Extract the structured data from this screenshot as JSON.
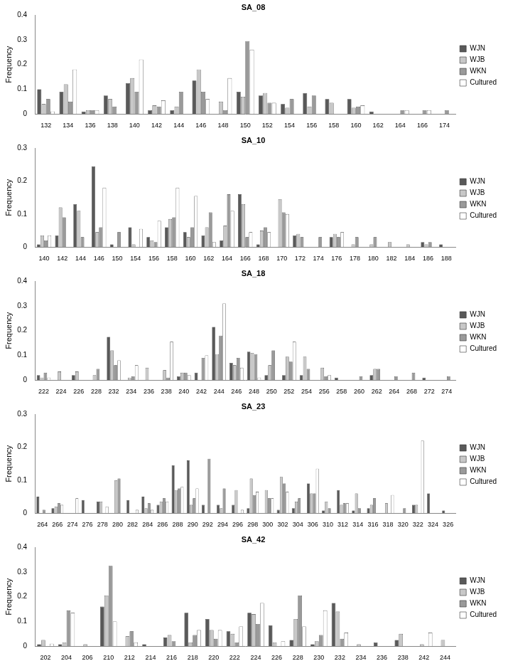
{
  "chart_data": [
    {
      "type": "bar",
      "title": "SA_08",
      "y_label": "Frequency",
      "grid": false,
      "legend": "right",
      "categories": [
        "132",
        "134",
        "136",
        "138",
        "140",
        "142",
        "144",
        "146",
        "148",
        "150",
        "152",
        "154",
        "156",
        "158",
        "160",
        "162",
        "164",
        "166",
        "174"
      ],
      "ylim": [
        0,
        0.4
      ],
      "yticks": [
        0,
        0.1,
        0.2,
        0.3,
        0.4
      ],
      "series": [
        {
          "name": "WJN",
          "color": "#595959",
          "values": [
            0.1,
            0.09,
            0.01,
            0.075,
            0.125,
            0.015,
            0.015,
            0.135,
            0,
            0.09,
            0.075,
            0.04,
            0.085,
            0.06,
            0.06,
            0.01,
            0,
            0,
            0
          ]
        },
        {
          "name": "WJB",
          "color": "#c8c8c8",
          "values": [
            0.04,
            0.12,
            0.015,
            0.06,
            0.145,
            0.035,
            0.03,
            0.18,
            0.05,
            0.07,
            0.085,
            0.025,
            0.03,
            0.045,
            0.025,
            0,
            0,
            0,
            0
          ]
        },
        {
          "name": "WKN",
          "color": "#9a9a9a",
          "values": [
            0.06,
            0.05,
            0.015,
            0.03,
            0.09,
            0.03,
            0.09,
            0.09,
            0.015,
            0.295,
            0.045,
            0.06,
            0.075,
            0,
            0.03,
            0,
            0.015,
            0.015,
            0.015
          ]
        },
        {
          "name": "Cultured",
          "color": "#ffffff",
          "values": [
            0.01,
            0.18,
            0.015,
            0,
            0.22,
            0.055,
            0,
            0.06,
            0.145,
            0.26,
            0.045,
            0,
            0,
            0,
            0.035,
            0,
            0.015,
            0.015,
            0
          ]
        }
      ]
    },
    {
      "type": "bar",
      "title": "SA_10",
      "y_label": "Frequency",
      "grid": false,
      "legend": "right",
      "categories": [
        "140",
        "142",
        "144",
        "146",
        "150",
        "154",
        "156",
        "158",
        "160",
        "162",
        "164",
        "166",
        "168",
        "170",
        "172",
        "174",
        "176",
        "178",
        "180",
        "182",
        "184",
        "186",
        "188"
      ],
      "ylim": [
        0,
        0.3
      ],
      "yticks": [
        0,
        0.1,
        0.2,
        0.3
      ],
      "series": [
        {
          "name": "WJN",
          "color": "#595959",
          "values": [
            0.008,
            0.035,
            0.13,
            0.245,
            0.008,
            0.06,
            0.03,
            0.06,
            0.045,
            0.035,
            0.02,
            0.16,
            0.008,
            0,
            0.035,
            0,
            0.03,
            0,
            0,
            0,
            0,
            0.015,
            0.008
          ]
        },
        {
          "name": "WJB",
          "color": "#c8c8c8",
          "values": [
            0.035,
            0.12,
            0.11,
            0.045,
            0,
            0.008,
            0.02,
            0.085,
            0.03,
            0.06,
            0.065,
            0.13,
            0.05,
            0.145,
            0.04,
            0,
            0.04,
            0.008,
            0.008,
            0.015,
            0.008,
            0.008,
            0
          ]
        },
        {
          "name": "WKN",
          "color": "#9a9a9a",
          "values": [
            0.02,
            0.09,
            0.03,
            0.06,
            0.045,
            0,
            0.015,
            0.09,
            0.06,
            0.105,
            0.16,
            0.03,
            0.06,
            0.105,
            0.03,
            0.03,
            0.03,
            0.03,
            0.03,
            0,
            0,
            0.015,
            0
          ]
        },
        {
          "name": "Cultured",
          "color": "#ffffff",
          "values": [
            0.035,
            0,
            0,
            0.18,
            0,
            0.055,
            0.08,
            0.18,
            0.155,
            0.015,
            0.11,
            0.045,
            0.045,
            0.1,
            0,
            0,
            0.045,
            0,
            0,
            0,
            0,
            0,
            0
          ]
        }
      ]
    },
    {
      "type": "bar",
      "title": "SA_18",
      "y_label": "Frequency",
      "grid": false,
      "legend": "right",
      "categories": [
        "222",
        "224",
        "226",
        "228",
        "232",
        "234",
        "236",
        "238",
        "240",
        "242",
        "244",
        "246",
        "248",
        "250",
        "252",
        "254",
        "256",
        "258",
        "260",
        "262",
        "264",
        "268",
        "272",
        "274"
      ],
      "ylim": [
        0,
        0.4
      ],
      "yticks": [
        0,
        0.1,
        0.2,
        0.3,
        0.4
      ],
      "series": [
        {
          "name": "WJN",
          "color": "#595959",
          "values": [
            0.02,
            0,
            0.02,
            0,
            0.175,
            0,
            0,
            0,
            0.015,
            0.03,
            0.215,
            0.07,
            0.115,
            0.02,
            0.02,
            0.02,
            0,
            0.01,
            0,
            0.02,
            0,
            0,
            0.01,
            0
          ]
        },
        {
          "name": "WJB",
          "color": "#c8c8c8",
          "values": [
            0.01,
            0.035,
            0.035,
            0.02,
            0.12,
            0.01,
            0.05,
            0.04,
            0.03,
            0,
            0.105,
            0.06,
            0.11,
            0.06,
            0.095,
            0.095,
            0.05,
            0,
            0,
            0.045,
            0,
            0,
            0,
            0
          ]
        },
        {
          "name": "WKN",
          "color": "#9a9a9a",
          "values": [
            0.03,
            0,
            0,
            0.045,
            0.06,
            0.015,
            0,
            0.01,
            0.03,
            0.09,
            0.18,
            0.09,
            0.105,
            0.12,
            0.075,
            0.045,
            0.015,
            0,
            0.015,
            0.045,
            0.015,
            0.03,
            0,
            0.015
          ]
        },
        {
          "name": "Cultured",
          "color": "#ffffff",
          "values": [
            0.01,
            0,
            0,
            0,
            0.08,
            0.06,
            0,
            0.155,
            0.02,
            0.1,
            0.31,
            0.05,
            0.01,
            0,
            0.155,
            0,
            0.02,
            0,
            0,
            0,
            0,
            0,
            0,
            0
          ]
        }
      ]
    },
    {
      "type": "bar",
      "title": "SA_23",
      "y_label": "Frequency",
      "grid": false,
      "legend": "right",
      "categories": [
        "264",
        "266",
        "274",
        "276",
        "278",
        "280",
        "282",
        "284",
        "286",
        "288",
        "290",
        "292",
        "294",
        "296",
        "298",
        "300",
        "302",
        "304",
        "306",
        "310",
        "312",
        "314",
        "316",
        "318",
        "320",
        "322",
        "324",
        "326"
      ],
      "ylim": [
        0,
        0.3
      ],
      "yticks": [
        0,
        0.1,
        0.2,
        0.3
      ],
      "series": [
        {
          "name": "WJN",
          "color": "#595959",
          "values": [
            0.05,
            0.015,
            0,
            0.04,
            0.035,
            0,
            0.04,
            0.05,
            0.025,
            0.145,
            0.16,
            0.025,
            0.025,
            0.025,
            0.015,
            0,
            0.01,
            0.015,
            0.09,
            0.008,
            0.07,
            0.008,
            0.015,
            0,
            0,
            0.025,
            0.06,
            0.008
          ]
        },
        {
          "name": "WJB",
          "color": "#c8c8c8",
          "values": [
            0,
            0.02,
            0,
            0,
            0.035,
            0.1,
            0,
            0.015,
            0.035,
            0.07,
            0.025,
            0,
            0.015,
            0.07,
            0.105,
            0.07,
            0.11,
            0.035,
            0.06,
            0.035,
            0.025,
            0.06,
            0.025,
            0.03,
            0,
            0.025,
            0,
            0
          ]
        },
        {
          "name": "WKN",
          "color": "#9a9a9a",
          "values": [
            0.01,
            0.03,
            0,
            0,
            0,
            0.105,
            0,
            0.03,
            0.045,
            0.075,
            0.045,
            0.165,
            0.075,
            0,
            0.055,
            0.045,
            0.09,
            0.045,
            0.06,
            0.015,
            0.03,
            0.015,
            0.045,
            0,
            0.015,
            0,
            0,
            0
          ]
        },
        {
          "name": "Cultured",
          "color": "#ffffff",
          "values": [
            0,
            0.025,
            0.045,
            0,
            0.02,
            0,
            0.01,
            0.01,
            0.035,
            0.08,
            0.075,
            0,
            0,
            0.01,
            0.065,
            0.045,
            0.065,
            0,
            0.135,
            0,
            0.03,
            0,
            0,
            0.055,
            0,
            0.22,
            0,
            0
          ]
        }
      ]
    },
    {
      "type": "bar",
      "title": "SA_42",
      "y_label": "Frequency",
      "grid": false,
      "legend": "right",
      "categories": [
        "202",
        "204",
        "206",
        "210",
        "212",
        "214",
        "216",
        "218",
        "220",
        "222",
        "224",
        "226",
        "228",
        "230",
        "232",
        "234",
        "236",
        "238",
        "242",
        "244"
      ],
      "ylim": [
        0,
        0.4
      ],
      "yticks": [
        0,
        0.1,
        0.2,
        0.3,
        0.4
      ],
      "series": [
        {
          "name": "WJN",
          "color": "#595959",
          "values": [
            0.008,
            0.008,
            0,
            0.16,
            0,
            0.008,
            0.035,
            0.135,
            0.11,
            0.06,
            0.135,
            0.085,
            0.025,
            0.008,
            0.175,
            0,
            0.015,
            0.025,
            0,
            0
          ]
        },
        {
          "name": "WJB",
          "color": "#c8c8c8",
          "values": [
            0.025,
            0.015,
            0.008,
            0.205,
            0.04,
            0,
            0.045,
            0.015,
            0.065,
            0.05,
            0.13,
            0.015,
            0.11,
            0.02,
            0.14,
            0.008,
            0,
            0.05,
            0.008,
            0.025
          ]
        },
        {
          "name": "WKN",
          "color": "#9a9a9a",
          "values": [
            0,
            0.145,
            0,
            0.325,
            0.06,
            0,
            0.02,
            0.045,
            0.03,
            0.015,
            0.09,
            0,
            0.205,
            0.045,
            0.03,
            0,
            0,
            0,
            0,
            0
          ]
        },
        {
          "name": "Cultured",
          "color": "#ffffff",
          "values": [
            0.01,
            0.135,
            0,
            0.1,
            0.015,
            0,
            0,
            0.065,
            0.065,
            0.08,
            0.175,
            0.02,
            0.08,
            0.145,
            0.055,
            0,
            0,
            0,
            0.055,
            0
          ]
        }
      ]
    }
  ]
}
